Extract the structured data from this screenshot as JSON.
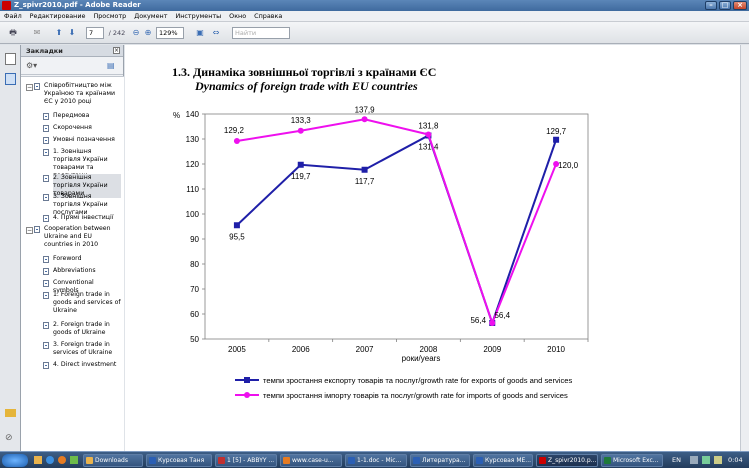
{
  "window": {
    "title": "Z_spivr2010.pdf - Adobe Reader"
  },
  "menu": [
    "Файл",
    "Редактирование",
    "Просмотр",
    "Документ",
    "Инструменты",
    "Окно",
    "Справка"
  ],
  "toolbar": {
    "page_current": "7",
    "page_total": "/ 242",
    "zoom": "129%",
    "search_placeholder": "Найти"
  },
  "panel": {
    "title": "Закладки"
  },
  "bookmarks": [
    {
      "label": "Співробітництво між Україною та країнами ЄС у 2010 році",
      "type": "group"
    },
    {
      "label": "Передмова",
      "type": "item"
    },
    {
      "label": "Скорочення",
      "type": "item"
    },
    {
      "label": "Умовні позначення",
      "type": "item"
    },
    {
      "label": "1. Зовнішня торгівля України товарами та послугами",
      "type": "item"
    },
    {
      "label": "2. Зовнішня торгівля України товарами",
      "type": "item",
      "selected": true
    },
    {
      "label": "3. Зовнішня торгівля України послугами",
      "type": "item"
    },
    {
      "label": "4. Прямі інвестиції",
      "type": "item"
    },
    {
      "label": "Cooperation between Ukraine and EU countries in 2010",
      "type": "group"
    },
    {
      "label": "Foreword",
      "type": "item"
    },
    {
      "label": "Abbreviations",
      "type": "item"
    },
    {
      "label": "Conventional symbols",
      "type": "item"
    },
    {
      "label": "1. Foreign trade in goods and services of Ukraine",
      "type": "item"
    },
    {
      "label": "2. Foreign trade in goods of Ukraine",
      "type": "item"
    },
    {
      "label": "3. Foreign trade in services of Ukraine",
      "type": "item"
    },
    {
      "label": "4. Direct investment",
      "type": "item"
    }
  ],
  "doc": {
    "heading_ua": "1.3. Динаміка зовнішньої торгівлі з країнами ЄС",
    "heading_en": "Dynamics of foreign trade with EU countries"
  },
  "chart_data": {
    "type": "line",
    "ylabel": "%",
    "xlabel": "роки/years",
    "ylim": [
      50,
      140
    ],
    "yticks": [
      50,
      60,
      70,
      80,
      90,
      100,
      110,
      120,
      130,
      140
    ],
    "categories": [
      "2005",
      "2006",
      "2007",
      "2008",
      "2009",
      "2010"
    ],
    "series": [
      {
        "name": "темпи зростання експорту товарів та послуг/growth rate for exports of goods and services",
        "color": "#1f1fa8",
        "marker": "square",
        "values": [
          95.5,
          119.7,
          117.7,
          131.4,
          56.4,
          129.7
        ],
        "labels": [
          "95,5",
          "119,7",
          "117,7",
          "131,4",
          "56,4",
          "129,7"
        ]
      },
      {
        "name": "темпи зростання імпорту товарів та послуг/growth rate for  imports of goods and services",
        "color": "#ee10ee",
        "marker": "circle",
        "values": [
          129.2,
          133.3,
          137.9,
          131.8,
          56.4,
          120.0
        ],
        "labels": [
          "129,2",
          "133,3",
          "137,9",
          "131,8",
          "56,4",
          "120,0"
        ]
      }
    ],
    "legend_position": "bottom"
  },
  "taskbar": {
    "clock": "0:04",
    "lang": "EN",
    "tasks": [
      "Downloads",
      "Курсовая Таня",
      "1 [5] - ABBYY ...",
      "www.case-u...",
      "1-1.doc - Mic...",
      "Литература...",
      "Курсовая МЕ...",
      "Z_spivr2010.p...",
      "Microsoft Exc..."
    ]
  },
  "colors": {
    "export": "#1f1fa8",
    "import": "#ee10ee",
    "titlebar": "#4a76aa"
  }
}
